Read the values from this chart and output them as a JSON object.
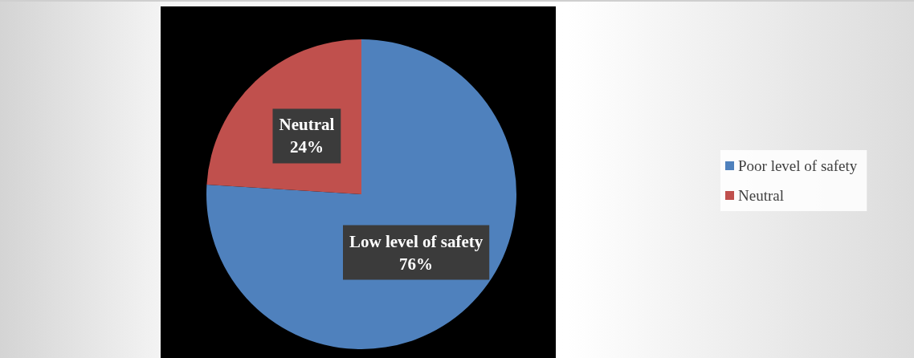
{
  "chart_data": {
    "type": "pie",
    "categories": [
      "Poor level of safety",
      "Neutral"
    ],
    "values": [
      76,
      24
    ],
    "colors": [
      "#4f81bd",
      "#c0504d"
    ],
    "value_labels": [
      "Low level of safety\n76%",
      "Neutral\n24%"
    ],
    "legend": "right"
  }
}
